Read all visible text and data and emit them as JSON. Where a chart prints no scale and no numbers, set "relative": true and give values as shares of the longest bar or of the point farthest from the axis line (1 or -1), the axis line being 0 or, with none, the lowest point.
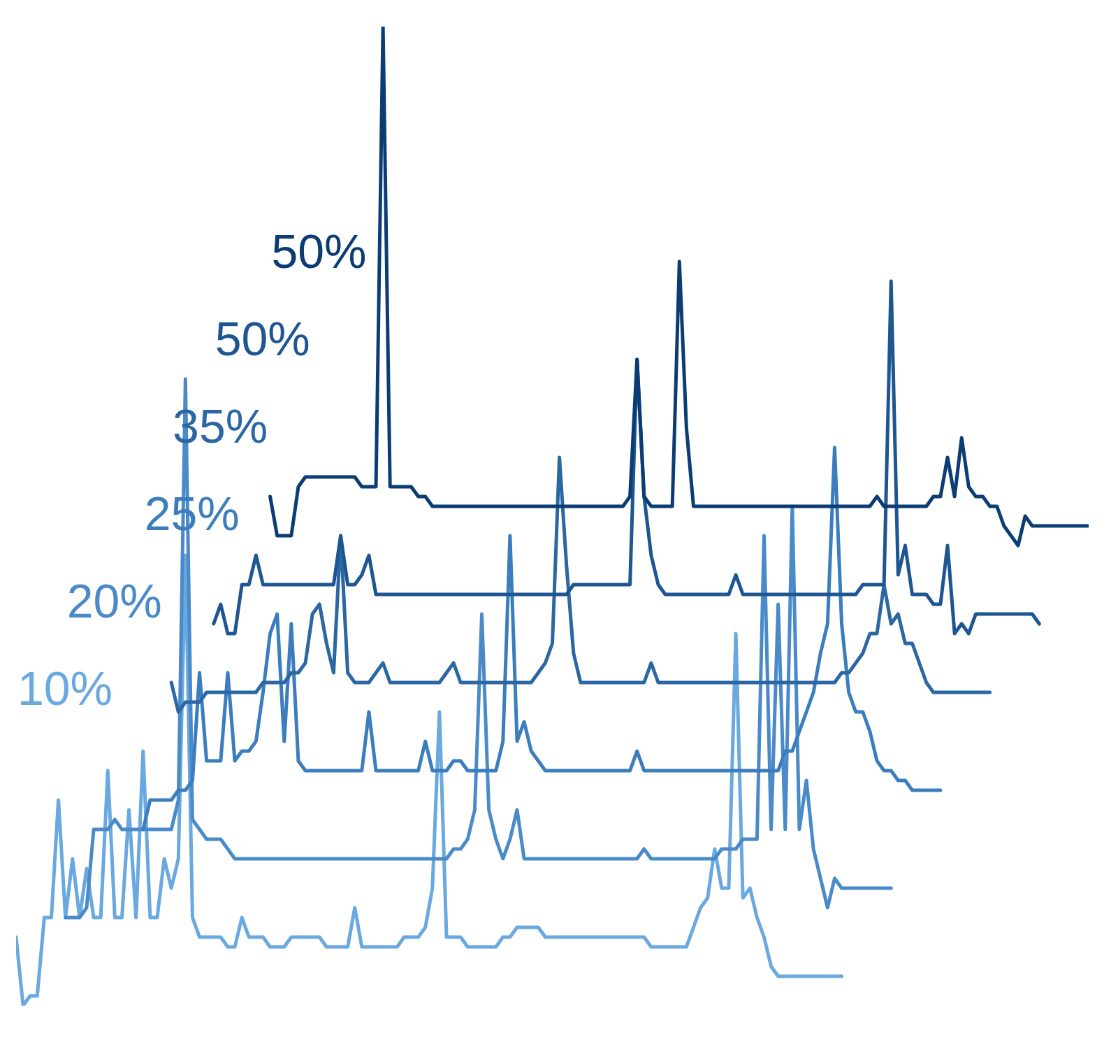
{
  "chart_data": {
    "type": "line",
    "relative": true,
    "categories": [
      null,
      null,
      null,
      null,
      null,
      null,
      null,
      null,
      null,
      null,
      null,
      null,
      null,
      null,
      null,
      null,
      null,
      null,
      null,
      null,
      null,
      null,
      null,
      null,
      null,
      null,
      null,
      null,
      null,
      null,
      null,
      null,
      null,
      null,
      null,
      null,
      null,
      null,
      null,
      null,
      null,
      null,
      null,
      null,
      null,
      null,
      null,
      null,
      null,
      null,
      null,
      null,
      null,
      null,
      null,
      null,
      null,
      null,
      null,
      null,
      null,
      null,
      null,
      null,
      null,
      null,
      null,
      null,
      null,
      null,
      null,
      null,
      null,
      null,
      null,
      null,
      null,
      null,
      null,
      null,
      null,
      null,
      null,
      null,
      null,
      null,
      null,
      null,
      null,
      null,
      null,
      null,
      null,
      null,
      null,
      null,
      null,
      null,
      null,
      null,
      null,
      null,
      null,
      null,
      null,
      null,
      null,
      null,
      null,
      null,
      null,
      null,
      null,
      null,
      null,
      null,
      null,
      null,
      null,
      null,
      null,
      null,
      null,
      null,
      null,
      null,
      null,
      null,
      null,
      null,
      null,
      null,
      null,
      null,
      null,
      null,
      null,
      null,
      null,
      null,
      null,
      null,
      null,
      null,
      null,
      null,
      null,
      null,
      null,
      null,
      null,
      null,
      null
    ],
    "series": [
      {
        "name": "10%",
        "color": "#6aa8e0",
        "values": [
          0.07,
          0,
          0.01,
          0.01,
          0.09,
          0.09,
          0.21,
          0.09,
          0.15,
          0.09,
          0.14,
          0.09,
          0.09,
          0.24,
          0.09,
          0.09,
          0.2,
          0.09,
          0.26,
          0.09,
          0.09,
          0.15,
          0.12,
          0.15,
          0.46,
          0.09,
          0.07,
          0.07,
          0.07,
          0.07,
          0.06,
          0.06,
          0.09,
          0.07,
          0.07,
          0.07,
          0.06,
          0.06,
          0.06,
          0.07,
          0.07,
          0.07,
          0.07,
          0.07,
          0.06,
          0.06,
          0.06,
          0.06,
          0.1,
          0.06,
          0.06,
          0.06,
          0.06,
          0.06,
          0.06,
          0.07,
          0.07,
          0.07,
          0.08,
          0.12,
          0.3,
          0.07,
          0.07,
          0.07,
          0.06,
          0.06,
          0.06,
          0.06,
          0.06,
          0.07,
          0.07,
          0.08,
          0.08,
          0.08,
          0.08,
          0.07,
          0.07,
          0.07,
          0.07,
          0.07,
          0.07,
          0.07,
          0.07,
          0.07,
          0.07,
          0.07,
          0.07,
          0.07,
          0.07,
          0.07,
          0.06,
          0.06,
          0.06,
          0.06,
          0.06,
          0.06,
          0.08,
          0.1,
          0.11,
          0.16,
          0.12,
          0.12,
          0.38,
          0.11,
          0.12,
          0.09,
          0.07,
          0.04,
          0.03,
          0.03,
          0.03,
          0.03,
          0.03,
          0.03,
          0.03,
          0.03,
          0.03,
          0.03,
          null,
          null,
          null,
          null,
          null,
          null,
          null,
          null,
          null,
          null,
          null,
          null,
          null,
          null,
          null,
          null,
          null,
          null,
          null,
          null,
          null,
          null,
          null,
          null,
          null,
          null,
          null,
          null,
          null,
          null,
          null,
          null,
          null,
          null,
          null
        ]
      },
      {
        "name": "20%",
        "color": "#4a8ac9",
        "values": [
          null,
          null,
          null,
          null,
          null,
          null,
          null,
          0.09,
          0.09,
          0.09,
          0.1,
          0.18,
          0.18,
          0.18,
          0.19,
          0.18,
          0.18,
          0.18,
          0.18,
          0.18,
          0.18,
          0.18,
          0.18,
          0.21,
          0.64,
          0.19,
          0.18,
          0.17,
          0.17,
          0.17,
          0.16,
          0.15,
          0.15,
          0.15,
          0.15,
          0.15,
          0.15,
          0.15,
          0.15,
          0.15,
          0.15,
          0.15,
          0.15,
          0.15,
          0.15,
          0.15,
          0.15,
          0.15,
          0.15,
          0.15,
          0.15,
          0.15,
          0.15,
          0.15,
          0.15,
          0.15,
          0.15,
          0.15,
          0.15,
          0.15,
          0.15,
          0.15,
          0.16,
          0.16,
          0.17,
          0.2,
          0.4,
          0.2,
          0.17,
          0.15,
          0.17,
          0.2,
          0.15,
          0.15,
          0.15,
          0.15,
          0.15,
          0.15,
          0.15,
          0.15,
          0.15,
          0.15,
          0.15,
          0.15,
          0.15,
          0.15,
          0.15,
          0.15,
          0.15,
          0.16,
          0.15,
          0.15,
          0.15,
          0.15,
          0.15,
          0.15,
          0.15,
          0.15,
          0.15,
          0.15,
          0.16,
          0.16,
          0.16,
          0.17,
          0.17,
          0.17,
          0.48,
          0.18,
          0.41,
          0.18,
          0.51,
          0.18,
          0.23,
          0.16,
          0.13,
          0.1,
          0.13,
          0.12,
          0.12,
          0.12,
          0.12,
          0.12,
          0.12,
          0.12,
          0.12,
          null,
          null,
          null,
          null,
          null,
          null,
          null,
          null,
          null,
          null,
          null,
          null,
          null,
          null,
          null,
          null,
          null,
          null,
          null,
          null,
          null,
          null,
          null,
          null,
          null,
          null,
          null,
          null
        ]
      },
      {
        "name": "25%",
        "color": "#3b7dbd",
        "values": [
          null,
          null,
          null,
          null,
          null,
          null,
          null,
          null,
          null,
          null,
          null,
          null,
          null,
          null,
          null,
          null,
          null,
          null,
          0.18,
          0.21,
          0.21,
          0.21,
          0.21,
          0.22,
          0.22,
          0.23,
          0.34,
          0.25,
          0.25,
          0.25,
          0.34,
          0.25,
          0.26,
          0.26,
          0.27,
          0.32,
          0.38,
          0.4,
          0.27,
          0.39,
          0.25,
          0.24,
          0.24,
          0.24,
          0.24,
          0.24,
          0.24,
          0.24,
          0.24,
          0.24,
          0.3,
          0.24,
          0.24,
          0.24,
          0.24,
          0.24,
          0.24,
          0.24,
          0.27,
          0.24,
          0.24,
          0.24,
          0.25,
          0.25,
          0.24,
          0.24,
          0.24,
          0.24,
          0.24,
          0.27,
          0.48,
          0.27,
          0.29,
          0.26,
          0.25,
          0.24,
          0.24,
          0.24,
          0.24,
          0.24,
          0.24,
          0.24,
          0.24,
          0.24,
          0.24,
          0.24,
          0.24,
          0.24,
          0.26,
          0.24,
          0.24,
          0.24,
          0.24,
          0.24,
          0.24,
          0.24,
          0.24,
          0.24,
          0.24,
          0.24,
          0.24,
          0.24,
          0.24,
          0.24,
          0.24,
          0.24,
          0.24,
          0.24,
          0.24,
          0.26,
          0.26,
          0.28,
          0.3,
          0.32,
          0.36,
          0.39,
          0.57,
          0.39,
          0.32,
          0.3,
          0.3,
          0.28,
          0.25,
          0.24,
          0.24,
          0.23,
          0.23,
          0.22,
          0.22,
          0.22,
          0.22,
          0.22,
          null,
          null,
          null,
          null,
          null,
          null,
          null,
          null,
          null,
          null,
          null,
          null,
          null,
          null,
          null,
          null,
          null,
          null,
          null,
          null,
          null
        ]
      },
      {
        "name": "35%",
        "color": "#2b67a3",
        "values": [
          null,
          null,
          null,
          null,
          null,
          null,
          null,
          null,
          null,
          null,
          null,
          null,
          null,
          null,
          null,
          null,
          null,
          null,
          null,
          null,
          null,
          null,
          0.33,
          0.3,
          0.31,
          0.31,
          0.31,
          0.32,
          0.32,
          0.32,
          0.32,
          0.32,
          0.32,
          0.32,
          0.32,
          0.33,
          0.33,
          0.33,
          0.33,
          0.34,
          0.34,
          0.35,
          0.4,
          0.41,
          0.37,
          0.34,
          0.48,
          0.34,
          0.33,
          0.33,
          0.33,
          0.34,
          0.35,
          0.33,
          0.33,
          0.33,
          0.33,
          0.33,
          0.33,
          0.33,
          0.33,
          0.34,
          0.35,
          0.33,
          0.33,
          0.33,
          0.33,
          0.33,
          0.33,
          0.33,
          0.33,
          0.33,
          0.33,
          0.33,
          0.34,
          0.35,
          0.37,
          0.56,
          0.45,
          0.36,
          0.33,
          0.33,
          0.33,
          0.33,
          0.33,
          0.33,
          0.33,
          0.33,
          0.33,
          0.33,
          0.35,
          0.33,
          0.33,
          0.33,
          0.33,
          0.33,
          0.33,
          0.33,
          0.33,
          0.33,
          0.33,
          0.33,
          0.33,
          0.33,
          0.33,
          0.33,
          0.33,
          0.33,
          0.33,
          0.33,
          0.33,
          0.33,
          0.33,
          0.33,
          0.33,
          0.33,
          0.33,
          0.34,
          0.34,
          0.35,
          0.36,
          0.38,
          0.38,
          0.43,
          0.39,
          0.4,
          0.37,
          0.37,
          0.35,
          0.33,
          0.32,
          0.32,
          0.32,
          0.32,
          0.32,
          0.32,
          0.32,
          0.32,
          0.32,
          null,
          null,
          null,
          null,
          null,
          null,
          null,
          null,
          null,
          null,
          null,
          null,
          null,
          null
        ]
      },
      {
        "name": "50%",
        "color": "#1d5690",
        "values": [
          null,
          null,
          null,
          null,
          null,
          null,
          null,
          null,
          null,
          null,
          null,
          null,
          null,
          null,
          null,
          null,
          null,
          null,
          null,
          null,
          null,
          null,
          null,
          null,
          null,
          null,
          null,
          null,
          0.39,
          0.41,
          0.38,
          0.38,
          0.43,
          0.43,
          0.46,
          0.43,
          0.43,
          0.43,
          0.43,
          0.43,
          0.43,
          0.43,
          0.43,
          0.43,
          0.43,
          0.43,
          0.48,
          0.43,
          0.43,
          0.44,
          0.46,
          0.42,
          0.42,
          0.42,
          0.42,
          0.42,
          0.42,
          0.42,
          0.42,
          0.42,
          0.42,
          0.42,
          0.42,
          0.42,
          0.42,
          0.42,
          0.42,
          0.42,
          0.42,
          0.42,
          0.42,
          0.42,
          0.42,
          0.42,
          0.42,
          0.42,
          0.42,
          0.42,
          0.42,
          0.43,
          0.43,
          0.43,
          0.43,
          0.43,
          0.43,
          0.43,
          0.43,
          0.43,
          0.66,
          0.52,
          0.46,
          0.43,
          0.42,
          0.42,
          0.42,
          0.42,
          0.42,
          0.42,
          0.42,
          0.42,
          0.42,
          0.42,
          0.44,
          0.42,
          0.42,
          0.42,
          0.42,
          0.42,
          0.42,
          0.42,
          0.42,
          0.42,
          0.42,
          0.42,
          0.42,
          0.42,
          0.42,
          0.42,
          0.42,
          0.42,
          0.43,
          0.43,
          0.43,
          0.43,
          0.74,
          0.44,
          0.47,
          0.42,
          0.42,
          0.42,
          0.41,
          0.41,
          0.47,
          0.38,
          0.39,
          0.38,
          0.4,
          0.4,
          0.4,
          0.4,
          0.4,
          0.4,
          0.4,
          0.4,
          0.4,
          0.39,
          null,
          null,
          null,
          null,
          null,
          null,
          null
        ]
      },
      {
        "name": "50%",
        "color": "#0b3d73",
        "values": [
          null,
          null,
          null,
          null,
          null,
          null,
          null,
          null,
          null,
          null,
          null,
          null,
          null,
          null,
          null,
          null,
          null,
          null,
          null,
          null,
          null,
          null,
          null,
          null,
          null,
          null,
          null,
          null,
          null,
          null,
          null,
          null,
          null,
          null,
          null,
          null,
          0.52,
          0.48,
          0.48,
          0.48,
          0.53,
          0.54,
          0.54,
          0.54,
          0.54,
          0.54,
          0.54,
          0.54,
          0.54,
          0.53,
          0.53,
          0.53,
          1,
          0.53,
          0.53,
          0.53,
          0.53,
          0.52,
          0.52,
          0.51,
          0.51,
          0.51,
          0.51,
          0.51,
          0.51,
          0.51,
          0.51,
          0.51,
          0.51,
          0.51,
          0.51,
          0.51,
          0.51,
          0.51,
          0.51,
          0.51,
          0.51,
          0.51,
          0.51,
          0.51,
          0.51,
          0.51,
          0.51,
          0.51,
          0.51,
          0.51,
          0.51,
          0.52,
          0.66,
          0.52,
          0.51,
          0.51,
          0.51,
          0.51,
          0.76,
          0.59,
          0.51,
          0.51,
          0.51,
          0.51,
          0.51,
          0.51,
          0.51,
          0.51,
          0.51,
          0.51,
          0.51,
          0.51,
          0.51,
          0.51,
          0.51,
          0.51,
          0.51,
          0.51,
          0.51,
          0.51,
          0.51,
          0.51,
          0.51,
          0.51,
          0.51,
          0.51,
          0.52,
          0.51,
          0.51,
          0.51,
          0.51,
          0.51,
          0.51,
          0.51,
          0.52,
          0.52,
          0.56,
          0.52,
          0.58,
          0.53,
          0.52,
          0.52,
          0.51,
          0.51,
          0.49,
          0.48,
          0.47,
          0.5,
          0.49,
          0.49,
          0.49,
          0.49,
          0.49,
          0.49,
          0.49,
          0.49,
          0.49
        ]
      }
    ]
  }
}
